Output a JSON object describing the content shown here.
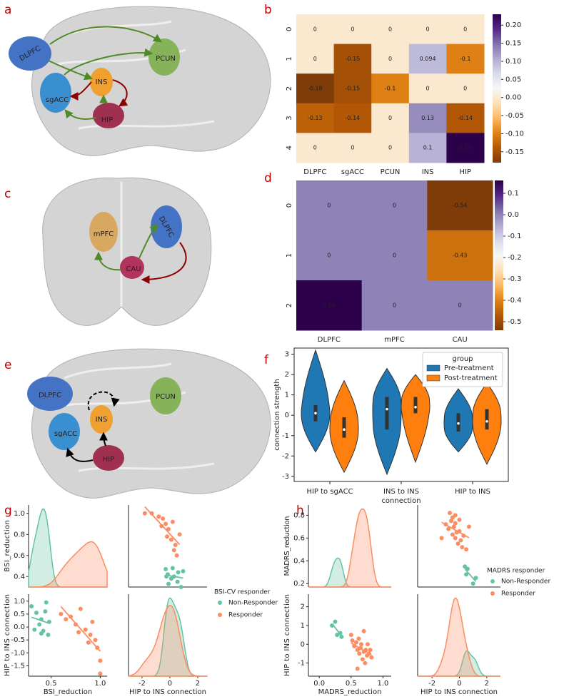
{
  "panel_labels": [
    "a",
    "b",
    "c",
    "d",
    "e",
    "f",
    "g",
    "h"
  ],
  "diagrams": [
    {
      "nodes": [
        "DLPFC",
        "PCUN",
        "INS",
        "sgACC",
        "HIP"
      ]
    },
    {
      "nodes": [
        "mPFC",
        "DLPFC",
        "CAU"
      ]
    },
    {
      "nodes": [
        "DLPFC",
        "PCUN",
        "INS",
        "sgACC",
        "HIP"
      ]
    }
  ],
  "chart_data": [
    {
      "type": "heatmap",
      "categories": [
        "DLPFC",
        "sgACC",
        "PCUN",
        "INS",
        "HIP"
      ],
      "rows": [
        "0",
        "1",
        "2",
        "3",
        "4"
      ],
      "values": [
        [
          0,
          0,
          0,
          0,
          0
        ],
        [
          0,
          -0.15,
          0,
          0.094,
          -0.1
        ],
        [
          -0.18,
          -0.15,
          -0.1,
          0,
          0
        ],
        [
          -0.13,
          -0.14,
          0,
          0.13,
          -0.14
        ],
        [
          0,
          0,
          0,
          0.1,
          0.23
        ]
      ],
      "colormap": "PuOr",
      "clim": [
        -0.18,
        0.23
      ],
      "cticks": [
        {
          "value": 0.2,
          "label": "0.20"
        },
        0.15,
        {
          "value": 0.1,
          "label": "0.10"
        },
        0.05,
        {
          "value": 0,
          "label": "0.00"
        },
        -0.05,
        {
          "value": -0.1,
          "label": "-0.10"
        },
        -0.15
      ]
    },
    {
      "type": "heatmap",
      "categories": [
        "DLPFC",
        "mPFC",
        "CAU"
      ],
      "rows": [
        "0",
        "1",
        "2"
      ],
      "values": [
        [
          0,
          0,
          -0.54
        ],
        [
          0,
          0,
          -0.43
        ],
        [
          0.16,
          0,
          0
        ]
      ],
      "colormap": "PuOr",
      "clim": [
        -0.54,
        0.16
      ],
      "cticks": [
        0.1,
        {
          "value": 0,
          "label": "0.0"
        },
        -0.1,
        -0.2,
        -0.3,
        -0.4,
        -0.5
      ]
    },
    {
      "type": "violin",
      "categories": [
        "HIP to sgACC",
        "INS to INS",
        "HIP to INS"
      ],
      "xlabel": "connection",
      "ylabel": "connection strength",
      "ylim": [
        -3.25,
        3.3
      ],
      "yticks": [
        3,
        2,
        1,
        0,
        -1,
        -2,
        -3
      ],
      "legend_title": "group",
      "legend": "upper right",
      "series": [
        {
          "name": "Pre-treatment",
          "color": "#1f77b4",
          "values": [
            {
              "min": -1.8,
              "q1": -0.3,
              "median": 0.1,
              "q3": 0.5,
              "max": 3.2
            },
            {
              "min": -2.9,
              "q1": -0.7,
              "median": 0.3,
              "q3": 0.9,
              "max": 2.3
            },
            {
              "min": -1.8,
              "q1": -0.8,
              "median": -0.4,
              "q3": 0.1,
              "max": 1.3
            }
          ]
        },
        {
          "name": "Post-treatment",
          "color": "#ff7f0e",
          "values": [
            {
              "min": -2.8,
              "q1": -1.1,
              "median": -0.7,
              "q3": -0.1,
              "max": 1.7
            },
            {
              "min": -2.3,
              "q1": 0.1,
              "median": 0.4,
              "q3": 0.9,
              "max": 2.0
            },
            {
              "min": -2.4,
              "q1": -0.7,
              "median": -0.3,
              "q3": 0.3,
              "max": 1.6
            }
          ]
        }
      ]
    },
    {
      "type": "pairplot",
      "variables": [
        "BSI_reduction",
        "HIP to INS connection"
      ],
      "legend_title": "BSI-CV responder",
      "xlims": [
        [
          0.27,
          1.07
        ],
        [
          -2.97,
          2.67
        ]
      ],
      "ylims": [
        [
          0.3,
          1.08
        ],
        [
          -1.9,
          1.27
        ]
      ],
      "xticks": [
        [
          0.5,
          {
            "value": 1,
            "label": "1.0"
          }
        ],
        [
          -2,
          0,
          2
        ]
      ],
      "yticks": [
        [
          0.4,
          0.6,
          0.8,
          {
            "value": 1,
            "label": "1.0"
          }
        ],
        [
          {
            "value": 1,
            "label": "1.0"
          },
          0.5,
          {
            "value": 0,
            "label": "0.0"
          },
          -0.5,
          {
            "value": -1,
            "label": "-1.0"
          },
          -1.5
        ]
      ],
      "series": [
        {
          "name": "Non-Responder",
          "color": "#66c2a5",
          "values": [
            [
              0.3,
              0.35,
              0.38,
              0.4,
              0.42,
              0.45,
              0.47,
              0.33,
              0.44,
              0.48,
              0.4
            ],
            [
              0.8,
              0.55,
              0.1,
              0.3,
              -0.15,
              0.95,
              -0.3,
              -0.1,
              0.6,
              0.2,
              -0.25
            ]
          ]
        },
        {
          "name": "Responder",
          "color": "#fc8d62",
          "values": [
            [
              0.6,
              0.65,
              0.7,
              0.75,
              0.8,
              0.85,
              0.88,
              0.9,
              0.92,
              0.95,
              0.97,
              1.0,
              1.0,
              0.78
            ],
            [
              0.5,
              0.3,
              0.4,
              0.1,
              0.7,
              -0.1,
              -0.6,
              -0.3,
              0.2,
              -0.5,
              -0.8,
              -1.8,
              -1.3,
              -0.2
            ]
          ]
        }
      ]
    },
    {
      "type": "pairplot",
      "variables": [
        "MADRS_reduction",
        "HIP to INS connection"
      ],
      "legend_title": "MADRS responder",
      "xlims": [
        [
          -0.17,
          1.13
        ],
        [
          -3.05,
          3.0
        ]
      ],
      "ylims": [
        [
          0.17,
          0.89
        ],
        [
          -1.7,
          2.67
        ]
      ],
      "xticks": [
        [
          {
            "value": 0,
            "label": "0.0"
          },
          0.5,
          {
            "value": 1,
            "label": "1.0"
          }
        ],
        [
          -2,
          0,
          2
        ]
      ],
      "yticks": [
        [
          0.2,
          0.4,
          0.6,
          0.8
        ],
        [
          -1,
          0,
          1,
          2
        ]
      ],
      "series": [
        {
          "name": "Non-Responder",
          "color": "#66c2a5",
          "values": [
            [
              0.2,
              0.28,
              0.33,
              0.25,
              0.35
            ],
            [
              1.0,
              0.5,
              0.6,
              1.2,
              0.4
            ]
          ]
        },
        {
          "name": "Responder",
          "color": "#fc8d62",
          "values": [
            [
              0.5,
              0.52,
              0.55,
              0.58,
              0.6,
              0.62,
              0.63,
              0.65,
              0.66,
              0.68,
              0.7,
              0.72,
              0.73,
              0.75,
              0.76,
              0.78,
              0.8,
              0.82,
              0.6,
              0.7
            ],
            [
              0.5,
              0.2,
              -0.1,
              0.1,
              -0.3,
              0.3,
              -0.5,
              -0.2,
              0.0,
              -0.8,
              -0.4,
              -1.0,
              -0.3,
              -0.6,
              0.0,
              -0.5,
              -0.3,
              -0.7,
              -1.3,
              0.7
            ]
          ]
        }
      ]
    }
  ]
}
